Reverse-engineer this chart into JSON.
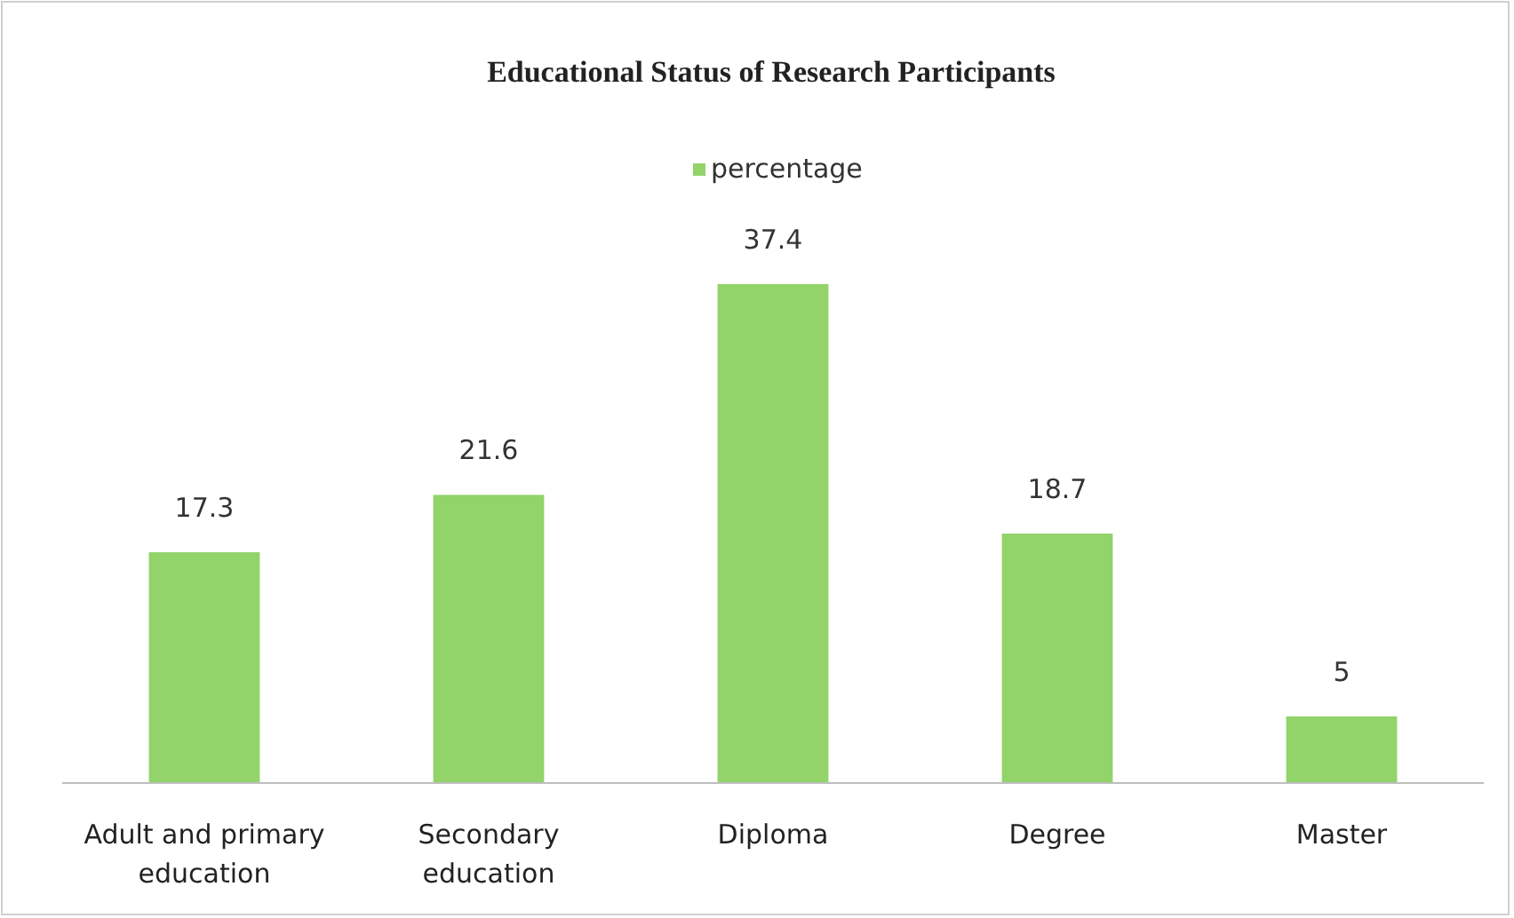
{
  "chart_data": {
    "type": "bar",
    "title": "Educational Status of Research Participants",
    "categories": [
      "Adult and primary education",
      "Secondary education",
      "Diploma",
      "Degree",
      "Master"
    ],
    "series": [
      {
        "name": "percentage",
        "color": "#92d36a",
        "values": [
          17.3,
          21.6,
          37.4,
          18.7,
          5
        ]
      }
    ],
    "data_labels": true,
    "legend": "top"
  }
}
